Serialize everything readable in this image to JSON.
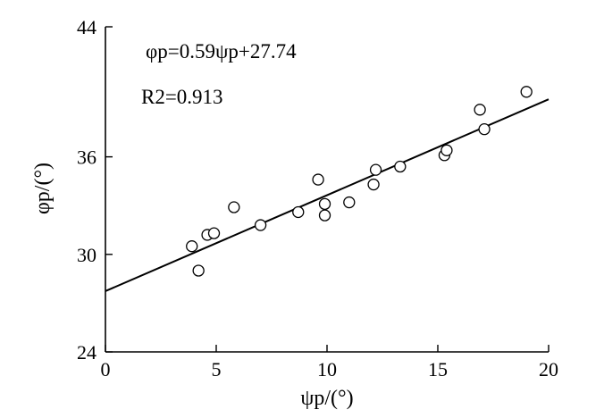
{
  "chart_data": {
    "type": "scatter",
    "xlabel": "ψp/(°)",
    "ylabel": "φp/(°)",
    "xlim": [
      0,
      20
    ],
    "ylim": [
      24,
      44
    ],
    "xticks": [
      "0",
      "5",
      "10",
      "15",
      "20"
    ],
    "yticks": [
      "24",
      "30",
      "36",
      "44"
    ],
    "ytick_values": [
      24,
      30,
      36,
      44
    ],
    "xtick_values": [
      0,
      5,
      10,
      15,
      20
    ],
    "grid": false,
    "annotations": {
      "equation": "φp=0.59ψp+27.74",
      "r_squared": "R2=0.913"
    },
    "fit": {
      "slope": 0.59,
      "intercept": 27.74
    },
    "series": [
      {
        "x": [
          3.9,
          4.2,
          4.6,
          4.9,
          5.8,
          7.0,
          8.7,
          9.6,
          9.9,
          9.9,
          11.0,
          12.1,
          12.2,
          13.3,
          15.3,
          15.4,
          16.9,
          17.1,
          19.0
        ],
        "y": [
          30.5,
          29.0,
          31.2,
          31.3,
          32.9,
          31.8,
          32.6,
          34.6,
          33.1,
          32.4,
          33.2,
          34.3,
          35.2,
          35.4,
          36.1,
          36.4,
          38.9,
          37.7,
          40.0
        ]
      }
    ]
  }
}
